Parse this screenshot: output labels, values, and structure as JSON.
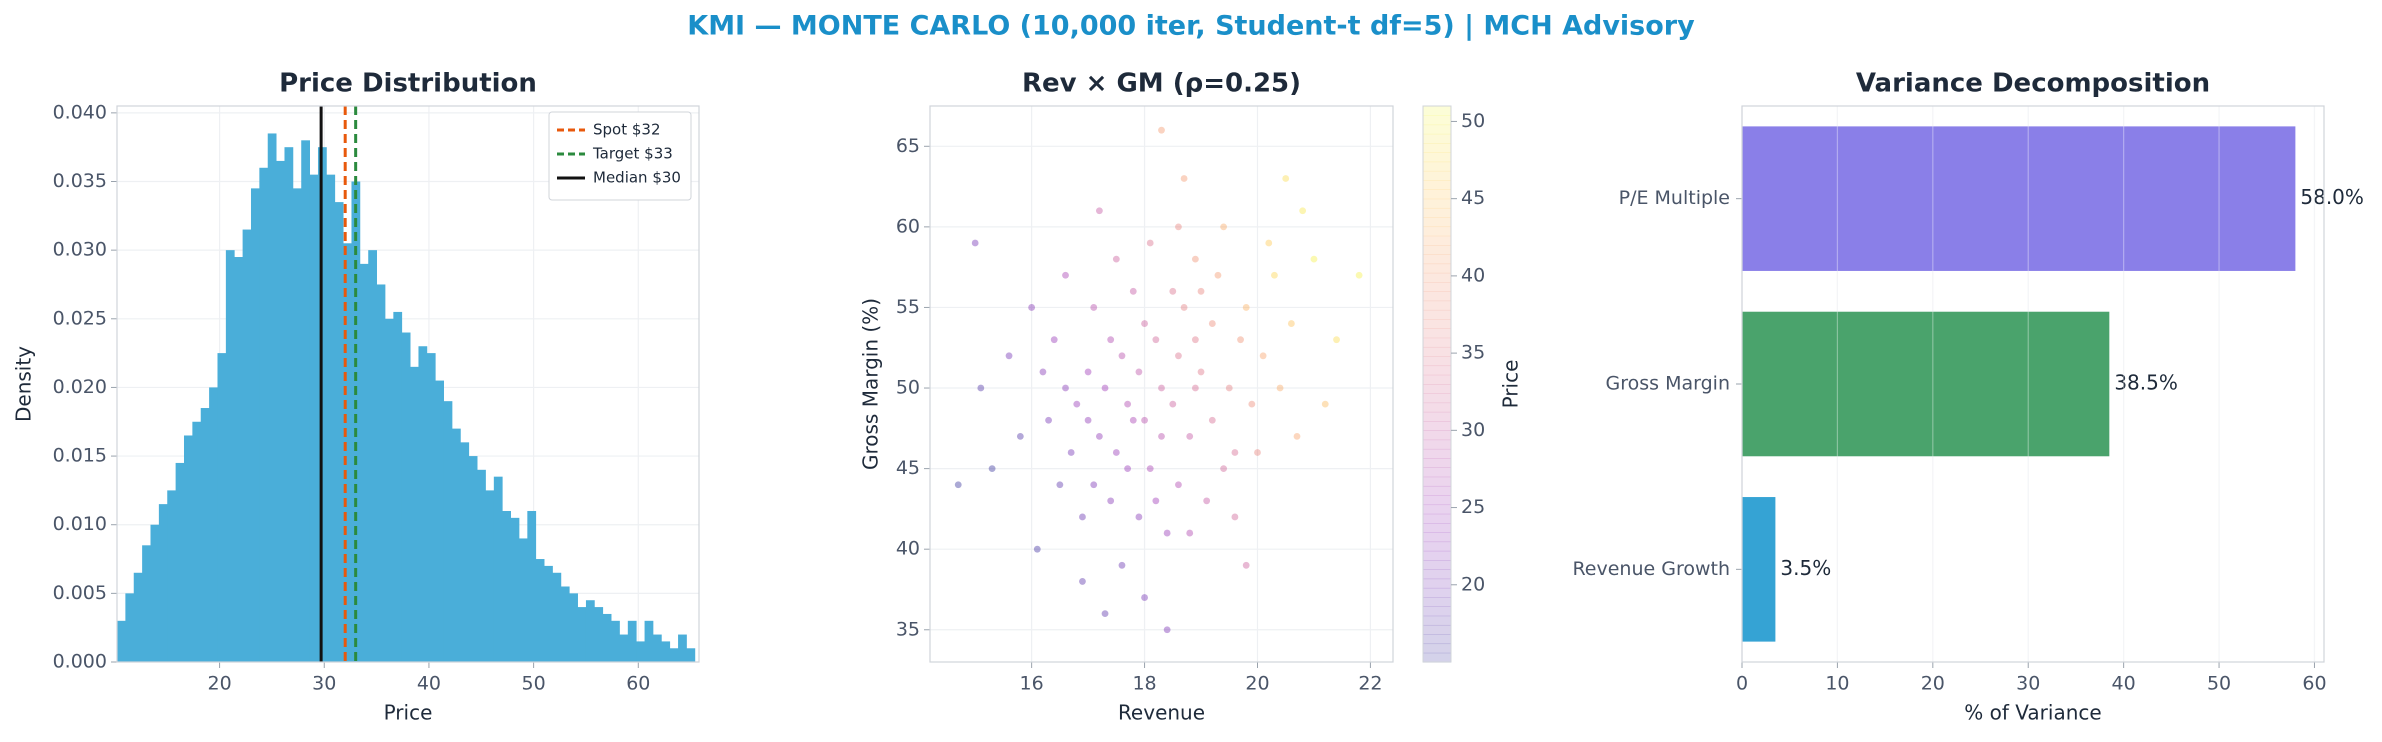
{
  "title": "KMI — MONTE CARLO (10,000 iter, Student-t df=5) | MCH Advisory",
  "chart_data": [
    {
      "type": "histogram",
      "title": "Price Distribution",
      "xlabel": "Price",
      "ylabel": "Density",
      "color": "#4aaed9",
      "bins": [
        10.2,
        11.0,
        11.8,
        12.6,
        13.4,
        14.2,
        15.0,
        15.8,
        16.6,
        17.4,
        18.2,
        19.0,
        19.8,
        20.6,
        21.4,
        22.2,
        23.0,
        23.8,
        24.6,
        25.4,
        26.2,
        27.0,
        27.8,
        28.6,
        29.4,
        30.2,
        31.0,
        31.8,
        32.6,
        33.4,
        34.2,
        35.0,
        35.8,
        36.6,
        37.4,
        38.2,
        39.0,
        39.8,
        40.6,
        41.4,
        42.2,
        43.0,
        43.8,
        44.6,
        45.4,
        46.2,
        47.0,
        47.8,
        48.6,
        49.4,
        50.2,
        51.0,
        51.8,
        52.6,
        53.4,
        54.2,
        55.0,
        55.8,
        56.6,
        57.4,
        58.2,
        59.0,
        59.8,
        60.6,
        61.4,
        62.2,
        63.0,
        63.8,
        64.6,
        65.4
      ],
      "values": [
        0.003,
        0.005,
        0.0065,
        0.0085,
        0.01,
        0.0115,
        0.0125,
        0.0145,
        0.0165,
        0.0175,
        0.0185,
        0.02,
        0.0225,
        0.03,
        0.0295,
        0.0315,
        0.0345,
        0.036,
        0.0385,
        0.0365,
        0.0375,
        0.0345,
        0.038,
        0.0355,
        0.0375,
        0.0355,
        0.0335,
        0.0305,
        0.035,
        0.029,
        0.03,
        0.0275,
        0.025,
        0.0255,
        0.024,
        0.0215,
        0.023,
        0.0225,
        0.0205,
        0.019,
        0.017,
        0.016,
        0.015,
        0.014,
        0.0125,
        0.0135,
        0.011,
        0.0105,
        0.009,
        0.011,
        0.0075,
        0.007,
        0.0065,
        0.0055,
        0.005,
        0.004,
        0.0045,
        0.004,
        0.0035,
        0.003,
        0.002,
        0.003,
        0.0015,
        0.003,
        0.002,
        0.0015,
        0.001,
        0.002,
        0.001
      ],
      "lines": [
        {
          "name": "Spot $32",
          "value": 32,
          "color": "#e8590c",
          "style": "dashed"
        },
        {
          "name": "Target $33",
          "value": 33,
          "color": "#2b8a3e",
          "style": "dashed"
        },
        {
          "name": "Median $30",
          "value": 29.7,
          "color": "#111111",
          "style": "solid"
        }
      ],
      "legend": "upper right",
      "grid": true,
      "xlim": [
        10.2,
        65.8
      ],
      "xticks": [
        20,
        30,
        40,
        50,
        60
      ],
      "ylim": [
        0,
        0.0405
      ],
      "yticks": [
        {
          "value": 0,
          "label": "0.000"
        },
        {
          "value": 0.005,
          "label": "0.005"
        },
        {
          "value": 0.01,
          "label": "0.010"
        },
        {
          "value": 0.015,
          "label": "0.015"
        },
        {
          "value": 0.02,
          "label": "0.020"
        },
        {
          "value": 0.025,
          "label": "0.025"
        },
        {
          "value": 0.03,
          "label": "0.030"
        },
        {
          "value": 0.035,
          "label": "0.035"
        },
        {
          "value": 0.04,
          "label": "0.040"
        }
      ]
    },
    {
      "type": "scatter",
      "title": "Rev × GM (ρ=0.25)",
      "xlabel": "Revenue",
      "ylabel": "Gross Margin (%)",
      "colorbar_label": "Price",
      "cmap": "plasma",
      "grid": true,
      "x": [
        18.0,
        17.5,
        18.6,
        19.2,
        17.1,
        18.3,
        16.8,
        19.8,
        17.9,
        18.8,
        16.2,
        20.3,
        17.4,
        18.1,
        19.5,
        17.7,
        18.9,
        16.5,
        20.1,
        18.4,
        17.2,
        19.0,
        15.8,
        18.7,
        17.6,
        19.6,
        18.2,
        20.6,
        17.0,
        16.9,
        18.5,
        19.3,
        17.8,
        21.0,
        16.4,
        18.0,
        19.9,
        17.3,
        15.3,
        18.6,
        20.4,
        17.5,
        18.9,
        16.7,
        19.4,
        18.3,
        17.1,
        20.8,
        16.1,
        19.1,
        18.7,
        17.9,
        15.6,
        20.0,
        18.1,
        17.4,
        19.7,
        16.6,
        21.4,
        18.4,
        17.0,
        19.2,
        18.8,
        16.3,
        20.2,
        17.7,
        18.5,
        15.1,
        19.6,
        17.2,
        21.8,
        18.0,
        16.9,
        19.0,
        17.6,
        18.2,
        20.7,
        16.0,
        19.4,
        17.8,
        15.0,
        18.6,
        17.3,
        20.5,
        19.8,
        16.6,
        18.3,
        21.2,
        14.7,
        18.9
      ],
      "y": [
        48,
        46,
        52,
        54,
        44,
        50,
        49,
        55,
        42,
        47,
        51,
        57,
        53,
        45,
        50,
        49,
        58,
        44,
        52,
        41,
        47,
        51,
        47,
        55,
        39,
        46,
        53,
        54,
        51,
        42,
        49,
        57,
        56,
        58,
        53,
        37,
        49,
        50,
        45,
        44,
        50,
        58,
        53,
        46,
        60,
        47,
        55,
        61,
        40,
        43,
        63,
        51,
        52,
        46,
        59,
        43,
        53,
        57,
        53,
        35,
        48,
        48,
        41,
        48,
        59,
        45,
        56,
        50,
        42,
        61,
        57,
        54,
        38,
        56,
        52,
        43,
        47,
        55,
        45,
        48,
        59,
        60,
        36,
        63,
        39,
        50,
        66,
        49,
        44,
        50
      ],
      "c": [
        28,
        24,
        34,
        38,
        21,
        31,
        24,
        43,
        22,
        30,
        22,
        47,
        27,
        26,
        36,
        27,
        39,
        18,
        41,
        24,
        23,
        35,
        17,
        36,
        19,
        33,
        32,
        45,
        25,
        19,
        31,
        40,
        30,
        50,
        24,
        20,
        38,
        25,
        15,
        27,
        42,
        31,
        35,
        20,
        42,
        28,
        28,
        49,
        16,
        30,
        40,
        29,
        20,
        37,
        34,
        22,
        39,
        26,
        48,
        21,
        23,
        33,
        27,
        20,
        46,
        24,
        34,
        17,
        32,
        30,
        50,
        31,
        18,
        37,
        28,
        25,
        41,
        22,
        32,
        26,
        20,
        37,
        18,
        48,
        31,
        22,
        40,
        44,
        14,
        33
      ],
      "xlim": [
        14.2,
        22.4
      ],
      "xticks": [
        16,
        18,
        20,
        22
      ],
      "ylim": [
        33,
        67.5
      ],
      "yticks": [
        35,
        40,
        45,
        50,
        55,
        60,
        65
      ],
      "clim": [
        15,
        51
      ],
      "cticks": [
        20,
        25,
        30,
        35,
        40,
        45,
        50
      ]
    },
    {
      "type": "bar",
      "orientation": "horizontal",
      "title": "Variance Decomposition",
      "xlabel": "% of Variance",
      "grid": true,
      "categories": [
        "Revenue Growth",
        "Gross Margin",
        "P/E Multiple"
      ],
      "values": [
        3.5,
        38.5,
        58.0
      ],
      "value_labels": [
        "3.5%",
        "38.5%",
        "58.0%"
      ],
      "colors": [
        "#35a3d4",
        "#4aa36c",
        "#8a7fe8"
      ],
      "xlim": [
        0,
        61
      ],
      "xticks": [
        0,
        10,
        20,
        30,
        40,
        50,
        60
      ]
    }
  ]
}
